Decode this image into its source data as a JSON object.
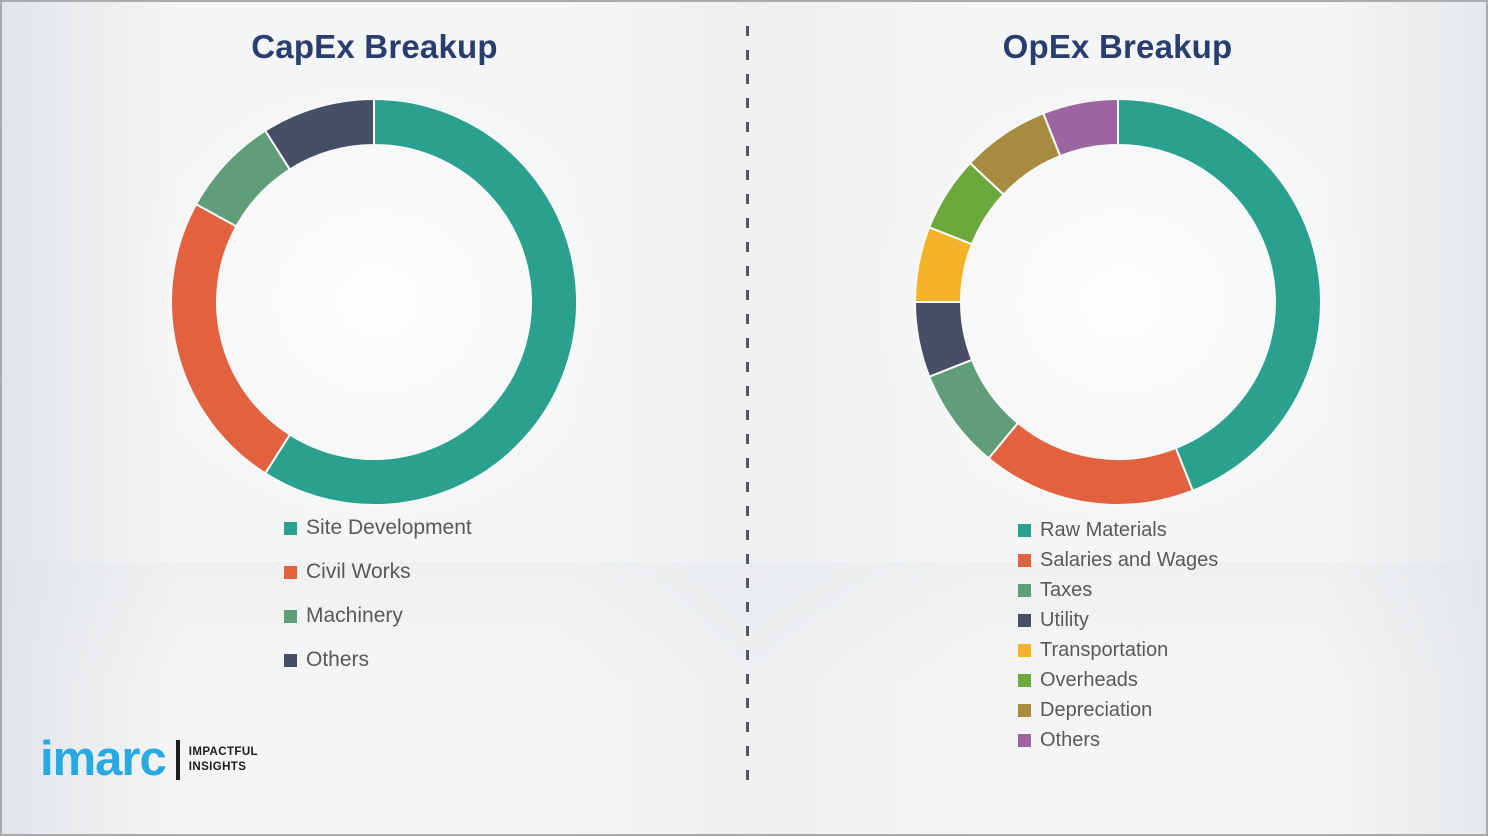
{
  "chart_data": [
    {
      "type": "pie",
      "subtype": "donut",
      "title": "CapEx Breakup",
      "start_angle_deg": 0,
      "direction": "clockwise",
      "legend_position": "below-left",
      "segments": [
        {
          "label": "Site Development",
          "value": 59,
          "color": "#2aa08f"
        },
        {
          "label": "Civil Works",
          "value": 24,
          "color": "#e2613e"
        },
        {
          "label": "Machinery",
          "value": 8,
          "color": "#5f9e78"
        },
        {
          "label": "Others",
          "value": 9,
          "color": "#484e66"
        }
      ]
    },
    {
      "type": "pie",
      "subtype": "donut",
      "title": "OpEx Breakup",
      "start_angle_deg": 0,
      "direction": "clockwise",
      "legend_position": "below-left",
      "segments": [
        {
          "label": "Raw Materials",
          "value": 44,
          "color": "#2aa08f"
        },
        {
          "label": "Salaries and Wages",
          "value": 17,
          "color": "#e2613e"
        },
        {
          "label": "Taxes",
          "value": 8,
          "color": "#5f9e78"
        },
        {
          "label": "Utility",
          "value": 6,
          "color": "#484e66"
        },
        {
          "label": "Transportation",
          "value": 6,
          "color": "#f5b32b"
        },
        {
          "label": "Overheads",
          "value": 6,
          "color": "#6ca93c"
        },
        {
          "label": "Depreciation",
          "value": 7,
          "color": "#a78b3f"
        },
        {
          "label": "Others",
          "value": 6,
          "color": "#9c64a0"
        }
      ]
    }
  ],
  "logo": {
    "brand": "imarc",
    "tagline_line1": "IMPACTFUL",
    "tagline_line2": "INSIGHTS",
    "brand_color": "#29a9e1"
  },
  "colors": {
    "title_navy": "#283e6e",
    "legend_text": "#595959",
    "divider_grey": "#57595c"
  }
}
